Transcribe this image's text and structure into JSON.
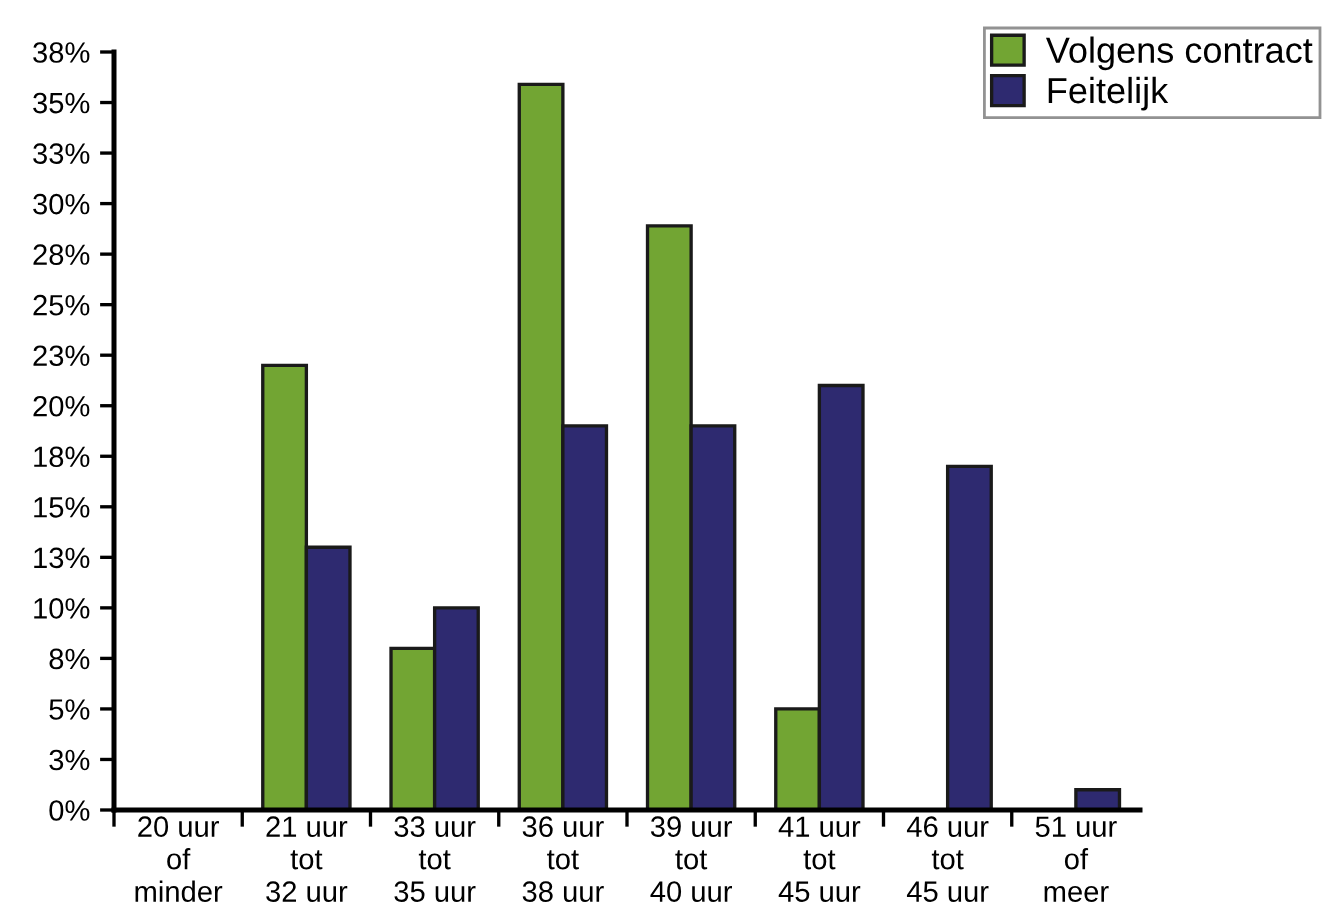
{
  "chart_data": {
    "type": "bar",
    "categories": [
      "20 uur\nof\nminder",
      "21 uur\ntot\n32 uur",
      "33 uur\ntot\n35 uur",
      "36 uur\ntot\n38 uur",
      "39 uur\ntot\n40 uur",
      "41 uur\ntot\n45 uur",
      "46 uur\ntot\n45 uur",
      "51 uur\nof\nmeer"
    ],
    "series": [
      {
        "name": "Volgens contract",
        "color": "#72a533",
        "values": [
          0,
          22.0,
          8.0,
          35.9,
          28.9,
          5.0,
          0,
          0
        ]
      },
      {
        "name": "Feitelijk",
        "color": "#2e2a70",
        "values": [
          0,
          13.0,
          10.0,
          19.0,
          19.0,
          21.0,
          17.0,
          1.0
        ]
      }
    ],
    "ylim": [
      0,
      37.5
    ],
    "yticks": [
      {
        "value": 0,
        "label": "0%"
      },
      {
        "value": 2.5,
        "label": "3%"
      },
      {
        "value": 5,
        "label": "5%"
      },
      {
        "value": 7.5,
        "label": "8%"
      },
      {
        "value": 10,
        "label": "10%"
      },
      {
        "value": 12.5,
        "label": "13%"
      },
      {
        "value": 15,
        "label": "15%"
      },
      {
        "value": 17.5,
        "label": "18%"
      },
      {
        "value": 20,
        "label": "20%"
      },
      {
        "value": 22.5,
        "label": "23%"
      },
      {
        "value": 25,
        "label": "25%"
      },
      {
        "value": 27.5,
        "label": "28%"
      },
      {
        "value": 30,
        "label": "30%"
      },
      {
        "value": 32.5,
        "label": "33%"
      },
      {
        "value": 35,
        "label": "35%"
      },
      {
        "value": 37.5,
        "label": "38%"
      }
    ],
    "grid": false,
    "legend": "top right"
  }
}
